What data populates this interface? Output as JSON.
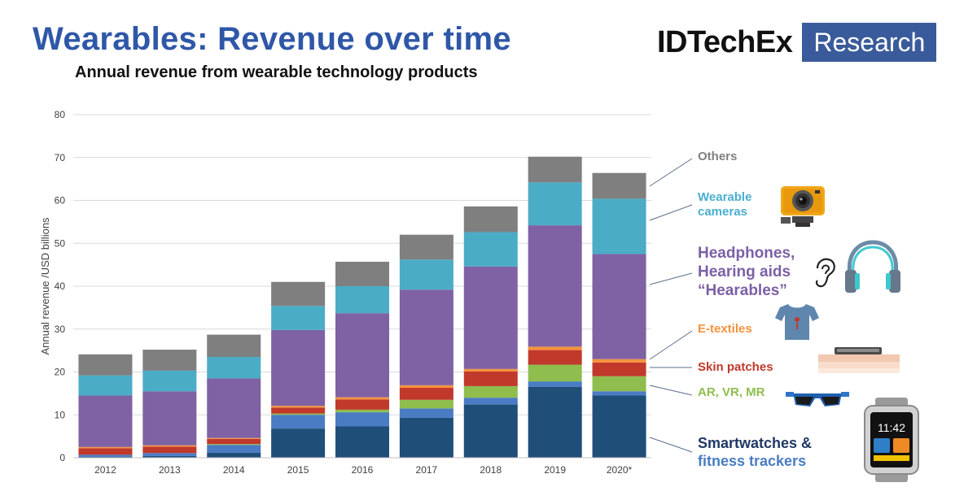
{
  "title": "Wearables: Revenue over time",
  "subtitle": "Annual revenue from wearable technology products",
  "logo": {
    "word": "IDTechEx",
    "box": "Research"
  },
  "colors": {
    "title": "#2f57a8",
    "logo_box": "#3a5b9b",
    "grid": "#d9d9d9",
    "axis": "#bfbfbf",
    "tick": "#404040",
    "leader": "#5a6e8c",
    "legend_hearables": "#7c5fa6",
    "legend_cameras": "#4aaed0",
    "legend_others": "#7f7f7f",
    "legend_etextiles": "#f5923e",
    "legend_skin": "#c0392b",
    "legend_ar": "#8fbd4e",
    "legend_smart": "#1f3864",
    "legend_fitness": "#4a7cc3"
  },
  "chart_data": {
    "type": "bar",
    "stacked": true,
    "categories": [
      "2012",
      "2013",
      "2014",
      "2015",
      "2016",
      "2017",
      "2018",
      "2019",
      "2020*"
    ],
    "ylabel": "Annual revenue /USD billions",
    "xlabel": "",
    "ylim": [
      0,
      80
    ],
    "yticks": [
      0,
      10,
      20,
      30,
      40,
      50,
      60,
      70,
      80
    ],
    "grid": true,
    "series": [
      {
        "key": "smartwatches",
        "color": "#1f4e79",
        "values": [
          0.2,
          0.4,
          1.2,
          6.8,
          7.3,
          9.3,
          12.4,
          16.5,
          14.5
        ]
      },
      {
        "key": "fitness",
        "color": "#4a7cc3",
        "values": [
          0.5,
          0.7,
          1.8,
          3.2,
          3.3,
          2.2,
          1.6,
          1.3,
          1.0
        ]
      },
      {
        "key": "ar_vr_mr",
        "color": "#8fbd4e",
        "values": [
          0.0,
          0.0,
          0.2,
          0.3,
          0.6,
          2.0,
          2.7,
          3.9,
          3.5
        ]
      },
      {
        "key": "skin_patches",
        "color": "#c0392b",
        "values": [
          1.5,
          1.5,
          1.2,
          1.4,
          2.4,
          2.8,
          3.4,
          3.4,
          3.2
        ]
      },
      {
        "key": "e_textiles",
        "color": "#f5923e",
        "values": [
          0.3,
          0.3,
          0.2,
          0.4,
          0.5,
          0.6,
          0.6,
          0.8,
          0.8
        ]
      },
      {
        "key": "hearables",
        "color": "#7e62a3",
        "values": [
          12.0,
          12.6,
          13.9,
          17.7,
          19.6,
          22.3,
          23.9,
          28.3,
          24.5
        ]
      },
      {
        "key": "cameras",
        "color": "#4bacc6",
        "values": [
          4.7,
          4.8,
          5.0,
          5.6,
          6.3,
          7.0,
          8.0,
          10.0,
          12.9
        ]
      },
      {
        "key": "others",
        "color": "#7f7f7f",
        "values": [
          4.9,
          4.9,
          5.2,
          5.6,
          5.7,
          5.8,
          6.0,
          6.0,
          6.0
        ]
      }
    ]
  },
  "legend": {
    "others": "Others",
    "cameras_1": "Wearable",
    "cameras_2": "cameras",
    "hearables_1": "Headphones,",
    "hearables_2": "Hearing aids",
    "hearables_3": "“Hearables”",
    "etextiles": "E-textiles",
    "skin": "Skin patches",
    "ar": "AR, VR, MR",
    "smart_1": "Smartwatches &",
    "smart_2": "fitness trackers"
  },
  "watch_time": "11:42",
  "icons": [
    "action-camera-icon",
    "ear-icon",
    "headphones-icon",
    "tshirt-icon",
    "skin-patch-icon",
    "vr-glasses-icon",
    "smartwatch-icon"
  ]
}
